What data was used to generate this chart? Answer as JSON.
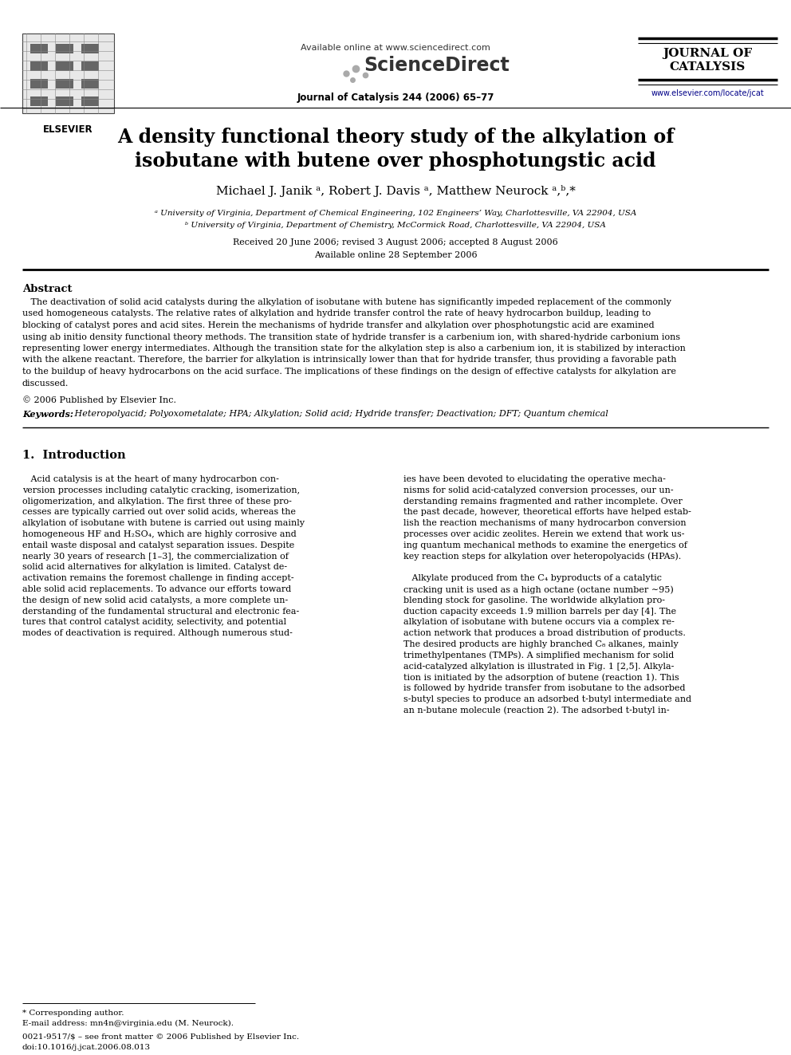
{
  "bg_color": "#ffffff",
  "title_line1": "A density functional theory study of the alkylation of",
  "title_line2": "isobutane with butene over phosphotungstic acid",
  "authors": "Michael J. Janik ᵃ, Robert J. Davis ᵃ, Matthew Neurock ᵃ,ᵇ,*",
  "affil_a": "ᵃ University of Virginia, Department of Chemical Engineering, 102 Engineers’ Way, Charlottesville, VA 22904, USA",
  "affil_b": "ᵇ University of Virginia, Department of Chemistry, McCormick Road, Charlottesville, VA 22904, USA",
  "received": "Received 20 June 2006; revised 3 August 2006; accepted 8 August 2006",
  "available": "Available online 28 September 2006",
  "journal_name": "Journal of Catalysis 244 (2006) 65–77",
  "available_online": "Available online at www.sciencedirect.com",
  "elsevier_text": "ELSEVIER",
  "journal_of": "JOURNAL OF",
  "catalysis": "CATALYSIS",
  "www_text": "www.elsevier.com/locate/jcat",
  "abstract_title": "Abstract",
  "copyright": "© 2006 Published by Elsevier Inc.",
  "keywords_label": "Keywords:",
  "keywords_body": " Heteropolyacid; Polyoxometalate; HPA; Alkylation; Solid acid; Hydride transfer; Deactivation; DFT; Quantum chemical",
  "section1_title": "1.  Introduction",
  "footnote1": "* Corresponding author.",
  "footnote2": "E-mail address: mn4n@virginia.edu (M. Neurock).",
  "footnote3": "0021-9517/$ – see front matter © 2006 Published by Elsevier Inc.",
  "footnote4": "doi:10.1016/j.jcat.2006.08.013"
}
